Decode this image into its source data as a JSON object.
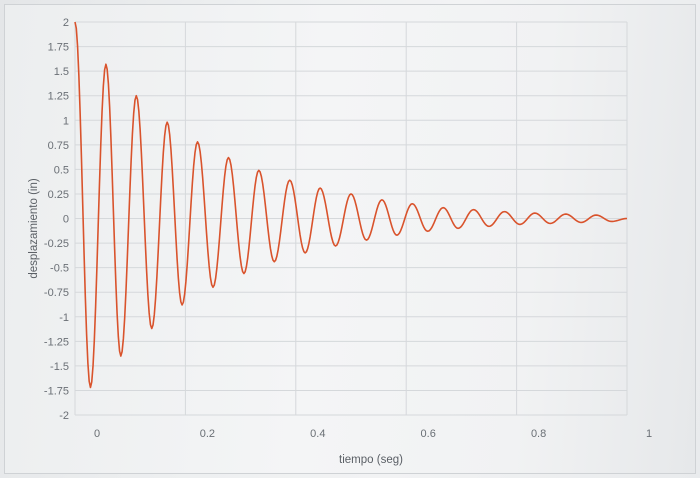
{
  "chart_data": {
    "type": "line",
    "title": "",
    "xlabel": "tiempo (seg)",
    "ylabel": "desplazamiento (in)",
    "xlim": [
      0,
      1
    ],
    "ylim": [
      -2,
      2
    ],
    "x_ticks": [
      "0",
      "0.2",
      "0.4",
      "0.6",
      "0.8",
      "1"
    ],
    "y_ticks": [
      "2",
      "1.75",
      "1.5",
      "1.25",
      "1",
      "0.75",
      "0.5",
      "0.25",
      "0",
      "-0.25",
      "-0.5",
      "-0.75",
      "-1",
      "-1.25",
      "-1.5",
      "-1.75",
      "-2"
    ],
    "grid": true,
    "legend": "none",
    "line_color": "#d9532c",
    "series": [
      {
        "x": [
          0,
          0.028,
          0.056,
          0.083,
          0.111,
          0.139,
          0.167,
          0.194,
          0.222,
          0.25,
          0.278,
          0.306,
          0.333,
          0.361,
          0.389,
          0.417,
          0.444,
          0.472,
          0.5,
          0.528,
          0.556,
          0.583,
          0.611,
          0.639,
          0.667,
          0.694,
          0.722,
          0.75,
          0.778,
          0.806,
          0.833,
          0.861,
          0.889,
          0.917,
          0.944,
          0.972,
          1.0
        ],
        "y": [
          2.0,
          -1.72,
          1.57,
          -1.4,
          1.25,
          -1.12,
          0.98,
          -0.88,
          0.78,
          -0.7,
          0.62,
          -0.56,
          0.49,
          -0.44,
          0.39,
          -0.35,
          0.31,
          -0.28,
          0.25,
          -0.22,
          0.19,
          -0.17,
          0.15,
          -0.13,
          0.11,
          -0.1,
          0.09,
          -0.08,
          0.07,
          -0.06,
          0.055,
          -0.05,
          0.045,
          -0.04,
          0.035,
          -0.03,
          0.0
        ]
      }
    ]
  }
}
